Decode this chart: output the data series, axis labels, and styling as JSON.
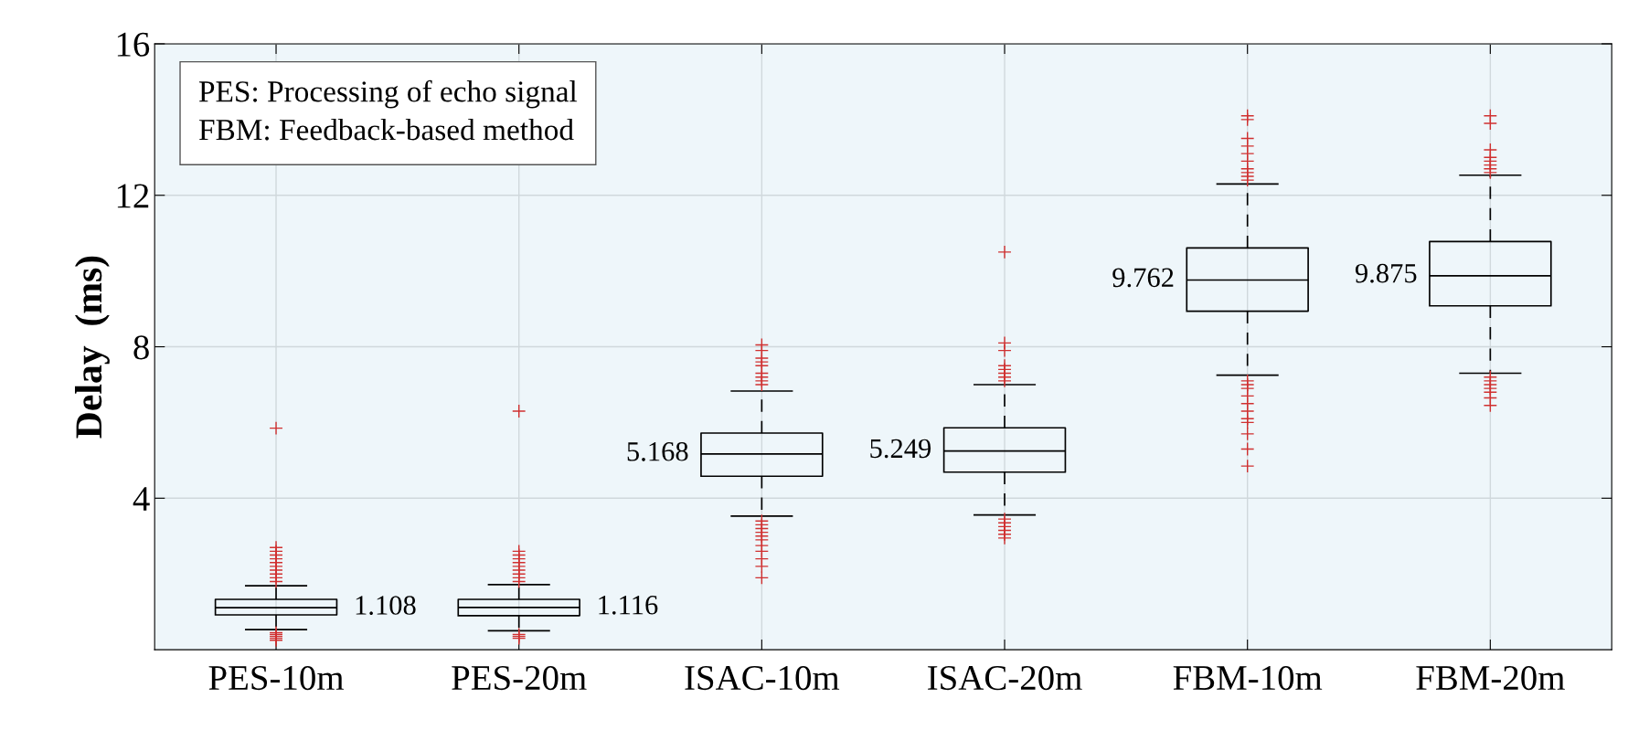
{
  "chart_data": {
    "type": "box",
    "ylabel": "Delay  (ms)",
    "categories": [
      "PES-10m",
      "PES-20m",
      "ISAC-10m",
      "ISAC-20m",
      "FBM-10m",
      "FBM-20m"
    ],
    "boxes": [
      {
        "low": 0.53,
        "q1": 0.92,
        "median": 1.108,
        "q3": 1.33,
        "high": 1.69,
        "outliers": [
          5.85,
          2.7,
          2.6,
          2.5,
          2.4,
          2.3,
          2.2,
          2.1,
          2.0,
          1.9,
          1.8,
          0.45,
          0.4,
          0.35,
          0.3,
          0.25
        ]
      },
      {
        "low": 0.5,
        "q1": 0.9,
        "median": 1.116,
        "q3": 1.33,
        "high": 1.72,
        "outliers": [
          6.3,
          2.6,
          2.5,
          2.4,
          2.3,
          2.2,
          2.1,
          2.0,
          1.9,
          1.8,
          0.4,
          0.35,
          0.3
        ]
      },
      {
        "low": 3.53,
        "q1": 4.58,
        "median": 5.168,
        "q3": 5.72,
        "high": 6.83,
        "outliers": [
          8.05,
          7.9,
          7.7,
          7.6,
          7.5,
          7.3,
          7.2,
          7.1,
          7.0,
          3.4,
          3.3,
          3.2,
          3.1,
          3.0,
          2.9,
          2.75,
          2.6,
          2.4,
          2.2,
          1.9
        ]
      },
      {
        "low": 3.56,
        "q1": 4.69,
        "median": 5.249,
        "q3": 5.86,
        "high": 7.0,
        "outliers": [
          10.5,
          8.1,
          7.9,
          7.5,
          7.4,
          7.3,
          7.2,
          7.1,
          3.45,
          3.35,
          3.25,
          3.15,
          3.05,
          2.95
        ]
      },
      {
        "low": 7.25,
        "q1": 8.94,
        "median": 9.762,
        "q3": 10.61,
        "high": 12.3,
        "outliers": [
          14.1,
          14.0,
          13.5,
          13.3,
          13.1,
          12.9,
          12.7,
          12.6,
          12.5,
          12.4,
          7.1,
          7.0,
          6.9,
          6.7,
          6.5,
          6.3,
          6.1,
          6.0,
          5.7,
          5.3,
          4.85
        ]
      },
      {
        "low": 7.3,
        "q1": 9.08,
        "median": 9.875,
        "q3": 10.78,
        "high": 12.53,
        "outliers": [
          14.1,
          13.9,
          13.2,
          13.0,
          12.9,
          12.8,
          12.7,
          12.6,
          7.2,
          7.1,
          7.0,
          6.9,
          6.8,
          6.65,
          6.45
        ]
      }
    ],
    "value_labels": [
      "1.108",
      "1.116",
      "5.168",
      "5.249",
      "9.762",
      "9.875"
    ],
    "color": "#000000",
    "ylim": [
      0,
      16
    ],
    "yticks": [
      4,
      8,
      12,
      16
    ],
    "grid": true,
    "annotations": [
      "PES: Processing of echo signal\nFBM: Feedback-based method"
    ]
  }
}
